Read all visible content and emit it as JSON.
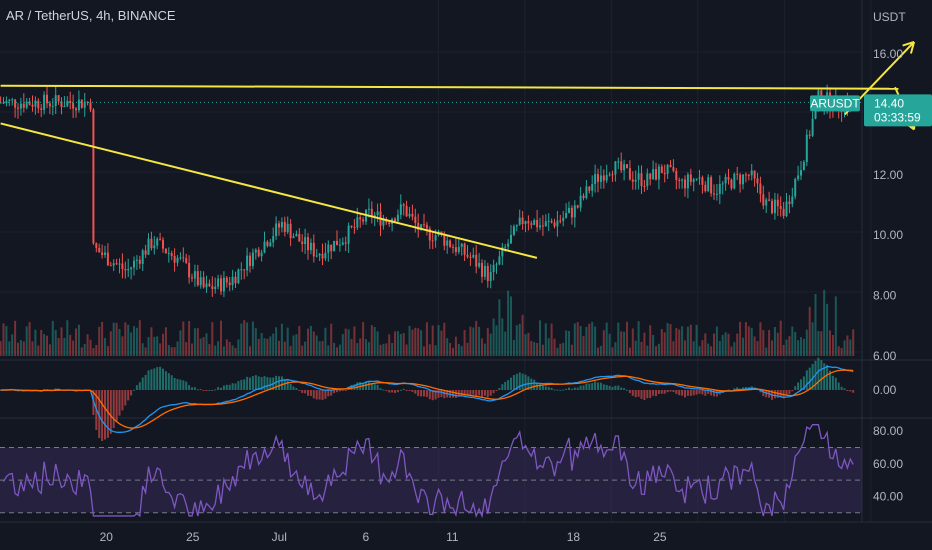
{
  "header": {
    "symbol_title": "AR / TetherUS, 4h, BINANCE"
  },
  "colors": {
    "background": "#131722",
    "up": "#26a69a",
    "down": "#ef5350",
    "trendline": "#f5e642",
    "macd": "#2196f3",
    "signal": "#ff6d00",
    "rsi": "#7e57c2",
    "rsi_band": "#3b2f63",
    "price_badge": "#26a69a"
  },
  "chart_data": {
    "type": "candlestick",
    "symbol": "ARUSDT",
    "quote_currency_label": "USDT",
    "x_tick_labels": [
      "20",
      "25",
      "Jul",
      "6",
      "11",
      "18",
      "25"
    ],
    "price_axis": {
      "ticks": [
        {
          "label": "16.00",
          "value": 16
        },
        {
          "label": "12.00",
          "value": 12
        },
        {
          "label": "10.00",
          "value": 10
        },
        {
          "label": "8.00",
          "value": 8
        },
        {
          "label": "6.00",
          "value": 6
        }
      ],
      "range": [
        6,
        17.5
      ]
    },
    "last_price": {
      "label": "14.40",
      "countdown": "03:33:59",
      "value": 14.4
    },
    "symbol_badge": "ARUSDT",
    "macd_panel": {
      "ticks": [
        {
          "label": "0.00",
          "value": 0
        }
      ]
    },
    "rsi_panel": {
      "ticks": [
        {
          "label": "80.00",
          "value": 80
        },
        {
          "label": "60.00",
          "value": 60
        },
        {
          "label": "40.00",
          "value": 40
        }
      ],
      "band": [
        30,
        70
      ],
      "range": [
        28,
        84
      ]
    },
    "price_path": [
      {
        "d": 0,
        "p": 9.6
      },
      {
        "d": 2,
        "p": 8.8
      },
      {
        "d": 3.5,
        "p": 9.8
      },
      {
        "d": 5,
        "p": 9.2
      },
      {
        "d": 6.5,
        "p": 8.2
      },
      {
        "d": 8,
        "p": 8.5
      },
      {
        "d": 9.5,
        "p": 9.5
      },
      {
        "d": 11,
        "p": 10.4
      },
      {
        "d": 12,
        "p": 9.8
      },
      {
        "d": 13,
        "p": 9.4
      },
      {
        "d": 14.5,
        "p": 9.9
      },
      {
        "d": 16,
        "p": 10.7
      },
      {
        "d": 17,
        "p": 10.5
      },
      {
        "d": 18,
        "p": 10.9
      },
      {
        "d": 19,
        "p": 10.1
      },
      {
        "d": 20,
        "p": 10.0
      },
      {
        "d": 21,
        "p": 9.6
      },
      {
        "d": 22,
        "p": 9.2
      },
      {
        "d": 23,
        "p": 8.6
      },
      {
        "d": 24,
        "p": 9.7
      },
      {
        "d": 25,
        "p": 10.6
      },
      {
        "d": 26,
        "p": 10.3
      },
      {
        "d": 27,
        "p": 10.5
      },
      {
        "d": 28,
        "p": 10.9
      },
      {
        "d": 29,
        "p": 11.8
      },
      {
        "d": 30,
        "p": 12.3
      },
      {
        "d": 31,
        "p": 12.0
      },
      {
        "d": 32,
        "p": 11.8
      },
      {
        "d": 33,
        "p": 12.2
      },
      {
        "d": 34,
        "p": 11.7
      },
      {
        "d": 35,
        "p": 11.9
      },
      {
        "d": 36,
        "p": 11.5
      },
      {
        "d": 37,
        "p": 11.8
      },
      {
        "d": 38,
        "p": 12.0
      },
      {
        "d": 39,
        "p": 11.0
      },
      {
        "d": 40,
        "p": 10.8
      },
      {
        "d": 41,
        "p": 12.4
      },
      {
        "d": 42,
        "p": 14.6
      },
      {
        "d": 43,
        "p": 14.3
      },
      {
        "d": 44,
        "p": 14.4
      }
    ],
    "trendlines": [
      {
        "name": "resistance",
        "from": {
          "d": -5.3,
          "p": 14.95
        },
        "to": {
          "d": 46.6,
          "p": 14.85
        }
      },
      {
        "name": "descending",
        "from": {
          "d": -5.3,
          "p": 13.7
        },
        "to": {
          "d": 25.7,
          "p": 9.25
        }
      }
    ],
    "projection_arrows": [
      {
        "from": {
          "d": 43.5,
          "p": 14.0
        },
        "to": {
          "d": 47.5,
          "p": 16.4
        }
      },
      {
        "from": {
          "d": 46.4,
          "p": 14.9
        },
        "to": {
          "d": 47.5,
          "p": 13.5
        }
      }
    ]
  }
}
